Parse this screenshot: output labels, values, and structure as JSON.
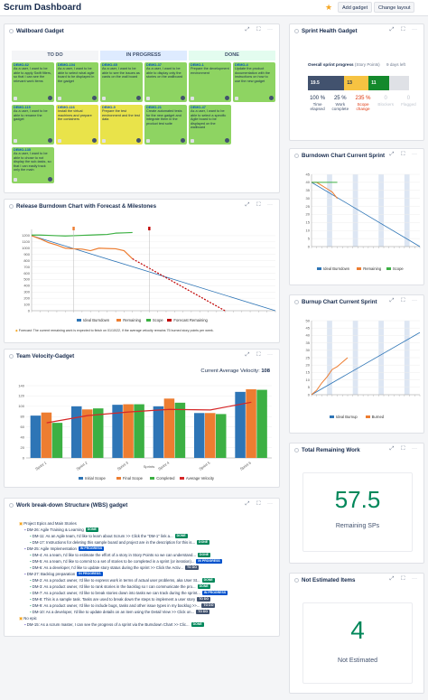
{
  "topbar": {
    "title": "Scrum Dashboard",
    "add_gadget": "Add gadget",
    "change_layout": "Change layout"
  },
  "gadget_controls": "⤢ ⛶ ⋯",
  "wallboard": {
    "title": "Wallboard Gadget",
    "columns": [
      "TO DO",
      "IN PROGRESS",
      "DONE"
    ],
    "column_colors": [
      "#f4f5f7",
      "#deebff",
      "#e3fcef"
    ],
    "cards": [
      {
        "col": 0,
        "row": 0,
        "key": "DEMO-62",
        "text": "As a user, I want to be able to apply Swift filters, so that I can see the relevant work items",
        "color": "#8ed462",
        "pts": "5"
      },
      {
        "col": 0,
        "row": 1,
        "key": "DEMO-104",
        "text": "As a user, I want to be able to select what agile board to be displayed in the gadget",
        "color": "#8ed462",
        "pts": "8"
      },
      {
        "col": 1,
        "row": 0,
        "key": "DEMO-65",
        "text": "As a user, I want to be able to see the issues as cards on the wall board",
        "color": "#8ed462",
        "pts": "3"
      },
      {
        "col": 1,
        "row": 1,
        "key": "DEMO-37",
        "text": "As a user, I want to be able to display only the stories on the wallboard",
        "color": "#8ed462",
        "pts": "5"
      },
      {
        "col": 2,
        "row": 0,
        "key": "DEMO-1",
        "text": "Prepare the development environment",
        "color": "#8ed462",
        "pts": "2"
      },
      {
        "col": 2,
        "row": 1,
        "key": "DEMO-4",
        "text": "Update the product documentation with the instructions on how to use the new gadget",
        "color": "#8ed462",
        "pts": "3"
      },
      {
        "col": 0,
        "row": 2,
        "key": "DEMO-115",
        "text": "As a user, I want to be able to rename the gadget",
        "color": "#8ed462",
        "pts": "2"
      },
      {
        "col": 0,
        "row": 3,
        "key": "DEMO-116",
        "text": "Install the virtual machines and prepare the containers",
        "color": "#e9e34a",
        "pts": "1"
      },
      {
        "col": 1,
        "row": 2,
        "key": "DEMO-9",
        "text": "Prepare the test environment and the test data",
        "color": "#e9e34a",
        "pts": "1"
      },
      {
        "col": 1,
        "row": 3,
        "key": "DEMO-21",
        "text": "Create automated tests for the new gadget and integrate them in the product test suite",
        "color": "#8ed462",
        "pts": "5"
      },
      {
        "col": 2,
        "row": 2,
        "key": "DEMO-47",
        "text": "As a user, I want to be able to select a specific Agile board to be displayed on the wallboard",
        "color": "#8ed462",
        "pts": "3"
      },
      {
        "col": 0,
        "row": 4,
        "key": "DEMO-135",
        "text": "As a user, I want to be able to chose to not display the sub-tasks, so that I can easily track only the main",
        "color": "#8ed462",
        "pts": "2"
      }
    ]
  },
  "release_burndown": {
    "title": "Release Burndown Chart with Forecast & Milestones",
    "ylabel": "Story Points",
    "xlabel": "Time",
    "footnote": "Forecast: The current remaining work is expected to finish on 01/10/22, if the average velocity remains 75 burned story points per week.",
    "legend": [
      "Ideal Burndown",
      "Remaining",
      "Scope",
      "Forecast Remaining"
    ],
    "colors": [
      "#2e75b6",
      "#ed7d31",
      "#3cb043",
      "#c00000"
    ]
  },
  "velocity": {
    "title": "Team Velocity-Gadget",
    "avg_label": "Current Average Velocity:",
    "avg_value": "108",
    "xlabel": "Sprints",
    "legend": [
      "Initial Scope",
      "Final Scope",
      "Completed",
      "Average Velocity"
    ],
    "colors": [
      "#2e75b6",
      "#ed7d31",
      "#3cb043",
      "#d62728"
    ]
  },
  "wbs": {
    "title": "Work break-down Structure (WBS) gadget",
    "rows": [
      {
        "indent": 0,
        "text": "Project Epics and Main Stories",
        "badge": "",
        "badge_color": ""
      },
      {
        "indent": 1,
        "text": "DM-26: Agile Training & Learning",
        "badge": "DONE",
        "badge_color": "#00875a"
      },
      {
        "indent": 2,
        "text": "DM-11: As an Agile team, I'd like to learn about Scrum >> Click the \"DM-1\" link a...",
        "badge": "DONE",
        "badge_color": "#00875a"
      },
      {
        "indent": 2,
        "text": "DM-17: Instructions for deleting this sample board and project are in the description for this is...",
        "badge": "DONE",
        "badge_color": "#00875a"
      },
      {
        "indent": 1,
        "text": "DM-25: Agile Implementation",
        "badge": "IN PROGRESS",
        "badge_color": "#0052cc"
      },
      {
        "indent": 2,
        "text": "DM-4: As a team, I'd like to estimate the effort of a story in Story Points so we can understand...",
        "badge": "DONE",
        "badge_color": "#00875a"
      },
      {
        "indent": 2,
        "text": "DM-5: As a team, I'd like to commit to a set of stories to be completed in a sprint (or iteration)...",
        "badge": "IN PROGRESS",
        "badge_color": "#0052cc"
      },
      {
        "indent": 2,
        "text": "DM-6: As a developer, I'd like to update story status during the sprint >> Click the Activ...",
        "badge": "TO DO",
        "badge_color": "#42526e"
      },
      {
        "indent": 1,
        "text": "DM-27: Backlog preparation",
        "badge": "IN PROGRESS",
        "badge_color": "#0052cc"
      },
      {
        "indent": 2,
        "text": "DM-2: As a product owner, I'd like to express work in terms of actual user problems, aka User St...",
        "badge": "DONE",
        "badge_color": "#00875a"
      },
      {
        "indent": 2,
        "text": "DM-3: As a product owner, I'd like to rank stories in the backlog so I can communicate the pro...",
        "badge": "DONE",
        "badge_color": "#00875a"
      },
      {
        "indent": 2,
        "text": "DM-7: As a product owner, I'd like to break stories down into tasks we can track during the sprint...",
        "badge": "IN PROGRESS",
        "badge_color": "#0052cc"
      },
      {
        "indent": 2,
        "text": "DM-8: This is a sample task. Tasks are used to break down the steps to implement a user story",
        "badge": "TO DO",
        "badge_color": "#42526e"
      },
      {
        "indent": 2,
        "text": "DM-9: As a product owner, I'd like to include bugs, tasks and other issue types in my backlog >>...",
        "badge": "TO DO",
        "badge_color": "#42526e"
      },
      {
        "indent": 2,
        "text": "DM-10: As a developer, I'd like to update details on an item using the Detail View >> Click on...",
        "badge": "TO DO",
        "badge_color": "#42526e"
      },
      {
        "indent": 0,
        "text": "No epic",
        "badge": "",
        "badge_color": ""
      },
      {
        "indent": 1,
        "text": "DM-15: As a scrum master, I can see the progress of a sprint via the Burndown Chart >> Clic...",
        "badge": "DONE",
        "badge_color": "#00875a"
      }
    ]
  },
  "sprint_health": {
    "title": "Sprint Health Gadget",
    "progress_label": "Overall sprint progress",
    "progress_unit": "(Story Points)",
    "days_left": "9 days left",
    "segments": [
      {
        "value": "19.5",
        "fraction": 0.36,
        "color": "#42526e"
      },
      {
        "value": "13",
        "fraction": 0.24,
        "color": "#f6c342"
      },
      {
        "value": "11",
        "fraction": 0.2,
        "color": "#14892c"
      }
    ],
    "remaining_fraction": 0.2,
    "metrics": [
      {
        "value": "100 %",
        "label": "Time elapsed",
        "color": "#172b4d"
      },
      {
        "value": "25 %",
        "label": "Work complete",
        "color": "#172b4d"
      },
      {
        "value": "235 %",
        "label": "Scope change",
        "color": "#de350b"
      },
      {
        "value": "0",
        "label": "Blockers",
        "color": "#c1c7d0"
      },
      {
        "value": "0",
        "label": "Flagged",
        "color": "#c1c7d0"
      }
    ]
  },
  "burndown_sprint": {
    "title": "Burndown Chart Current Sprint",
    "ylabel": "Story Points",
    "xlabel": "Days",
    "legend": [
      "Ideal Burndown",
      "Remaining",
      "Scope"
    ],
    "colors": [
      "#2e75b6",
      "#ed7d31",
      "#3cb043"
    ]
  },
  "burnup_sprint": {
    "title": "Burnup Chart Current Sprint",
    "ylabel": "Story Points",
    "xlabel": "Days",
    "legend": [
      "Ideal Burnup",
      "Burned"
    ],
    "colors": [
      "#2e75b6",
      "#ed7d31"
    ]
  },
  "total_remaining": {
    "title": "Total Remaining Work",
    "value": "57.5",
    "label": "Remaining SPs",
    "color": "#00875a"
  },
  "not_estimated": {
    "title": "Not Estimated Items",
    "value": "4",
    "label": "Not Estimated",
    "color": "#00875a"
  },
  "chart_data": [
    {
      "type": "line",
      "title": "Release Burndown Chart with Forecast & Milestones",
      "ylabel": "Story Points",
      "xlabel": "Time",
      "ylim": [
        0,
        1300
      ],
      "yticks": [
        0,
        100,
        200,
        300,
        400,
        500,
        600,
        700,
        800,
        900,
        1000,
        1100,
        1200
      ],
      "x_count": 30,
      "series": [
        {
          "name": "Ideal Burndown",
          "x": [
            0,
            29
          ],
          "y": [
            1200,
            0
          ]
        },
        {
          "name": "Remaining",
          "x": [
            0,
            1,
            2,
            3,
            4,
            5,
            6,
            7,
            8,
            9,
            10,
            11,
            12
          ],
          "y": [
            1200,
            1150,
            1090,
            1050,
            1000,
            990,
            985,
            960,
            1000,
            995,
            990,
            960,
            830
          ]
        },
        {
          "name": "Scope",
          "x": [
            0,
            1,
            2,
            3,
            4,
            5,
            6,
            7,
            8,
            9,
            10,
            11,
            12
          ],
          "y": [
            1210,
            1210,
            1205,
            1200,
            1195,
            1200,
            1205,
            1210,
            1215,
            1220,
            1240,
            1245,
            1250
          ]
        },
        {
          "name": "Forecast Remaining",
          "x": [
            12,
            23
          ],
          "y": [
            830,
            0
          ]
        }
      ]
    },
    {
      "type": "bar",
      "title": "Team Velocity-Gadget",
      "xlabel": "Sprints",
      "ylim": [
        0,
        140
      ],
      "yticks": [
        0,
        20,
        40,
        60,
        80,
        100,
        120,
        140
      ],
      "categories": [
        "Sprint 1",
        "Sprint 2",
        "Sprint 3",
        "Sprint 4",
        "Sprint 5",
        "Sprint 6"
      ],
      "series": [
        {
          "name": "Initial Scope",
          "values": [
            82,
            100,
            103,
            100,
            87,
            128
          ]
        },
        {
          "name": "Final Scope",
          "values": [
            88,
            94,
            104,
            115,
            87,
            133
          ]
        },
        {
          "name": "Completed",
          "values": [
            68,
            96,
            104,
            107,
            85,
            132
          ]
        },
        {
          "name": "Average Velocity",
          "values": [
            68,
            82,
            89,
            94,
            93,
            108
          ]
        }
      ]
    },
    {
      "type": "line",
      "title": "Burndown Chart Current Sprint",
      "ylabel": "Story Points",
      "xlabel": "Days",
      "ylim": [
        0,
        45
      ],
      "yticks": [
        0,
        5,
        10,
        15,
        20,
        25,
        30,
        35,
        40,
        45
      ],
      "x_count": 22,
      "series": [
        {
          "name": "Ideal Burndown",
          "x": [
            0,
            21
          ],
          "y": [
            40,
            0
          ]
        },
        {
          "name": "Remaining",
          "x": [
            0,
            1,
            2,
            3,
            4,
            5
          ],
          "y": [
            40,
            40,
            38,
            36,
            34,
            30
          ]
        },
        {
          "name": "Scope",
          "x": [
            0,
            1,
            2,
            3,
            4,
            5
          ],
          "y": [
            40,
            40,
            40,
            40,
            40,
            40
          ]
        }
      ]
    },
    {
      "type": "line",
      "title": "Burnup Chart Current Sprint",
      "ylabel": "Story Points",
      "xlabel": "Days",
      "ylim": [
        0,
        50
      ],
      "yticks": [
        0,
        5,
        10,
        15,
        20,
        25,
        30,
        35,
        40,
        45,
        50
      ],
      "x_count": 22,
      "series": [
        {
          "name": "Ideal Burnup",
          "x": [
            0,
            21
          ],
          "y": [
            0,
            42
          ]
        },
        {
          "name": "Burned",
          "x": [
            0,
            1,
            2,
            3,
            4,
            5,
            6,
            7
          ],
          "y": [
            0,
            3,
            8,
            12,
            17,
            19,
            22,
            25
          ]
        }
      ]
    }
  ]
}
